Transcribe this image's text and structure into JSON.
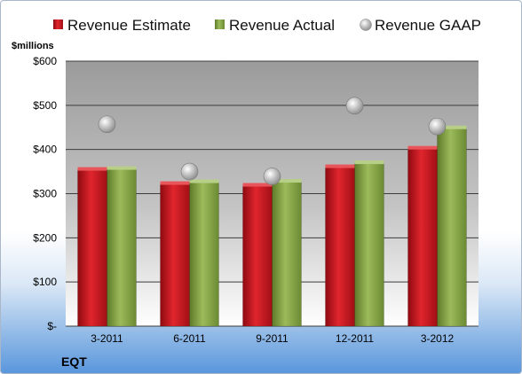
{
  "chart_data": {
    "type": "bar",
    "title": "",
    "ylabel": "$millions",
    "xlabel": "",
    "company": "EQT",
    "categories": [
      "3-2011",
      "6-2011",
      "9-2011",
      "12-2011",
      "3-2012"
    ],
    "series": [
      {
        "name": "Revenue Estimate",
        "kind": "bar",
        "color": "#c8141e",
        "values": [
          354,
          322,
          318,
          360,
          402
        ]
      },
      {
        "name": "Revenue Actual",
        "kind": "bar",
        "color": "#8aa64a",
        "values": [
          356,
          326,
          327,
          369,
          448
        ]
      },
      {
        "name": "Revenue GAAP",
        "kind": "marker",
        "color": "#b4b4b4",
        "values": [
          457,
          350,
          339,
          499,
          452
        ]
      }
    ],
    "ylim": [
      0,
      600
    ],
    "yticks": [
      0,
      100,
      200,
      300,
      400,
      500,
      600
    ],
    "ytick_labels": [
      "$-",
      "$100",
      "$200",
      "$300",
      "$400",
      "$500",
      "$600"
    ],
    "grid": true,
    "legend": "top"
  }
}
